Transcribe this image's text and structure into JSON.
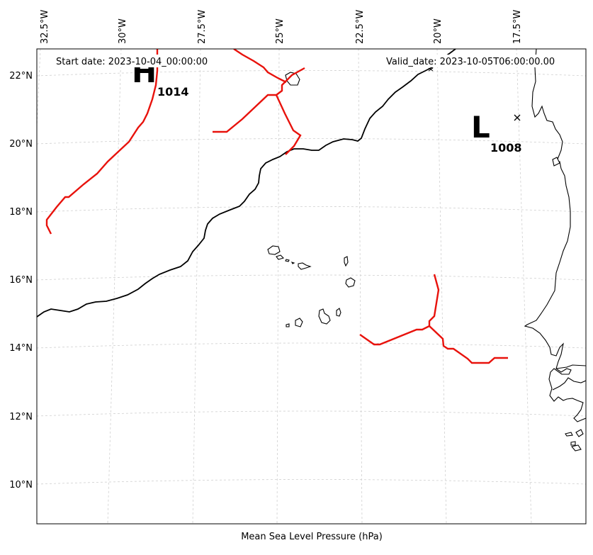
{
  "header": {
    "start_date": "Start date: 2023-10-04_00:00:00",
    "valid_date": "Valid_date: 2023-10-05T06:00:00.00"
  },
  "xlabel": "Mean Sea Level Pressure (hPa)",
  "lon_labels": [
    "32.5°W",
    "30°W",
    "27.5°W",
    "25°W",
    "22.5°W",
    "20°W",
    "17.5°W"
  ],
  "lat_labels": [
    "22°N",
    "20°N",
    "18°N",
    "16°N",
    "14°N",
    "12°N",
    "10°N"
  ],
  "pressure_centers": [
    {
      "symbol": "H",
      "value": "1014"
    },
    {
      "symbol": "L",
      "value": "1008"
    }
  ],
  "colors": {
    "isobar_low": "#e8120c",
    "isobar_main": "#000000",
    "coast": "#000000",
    "grid": "#cfcfcf"
  }
}
